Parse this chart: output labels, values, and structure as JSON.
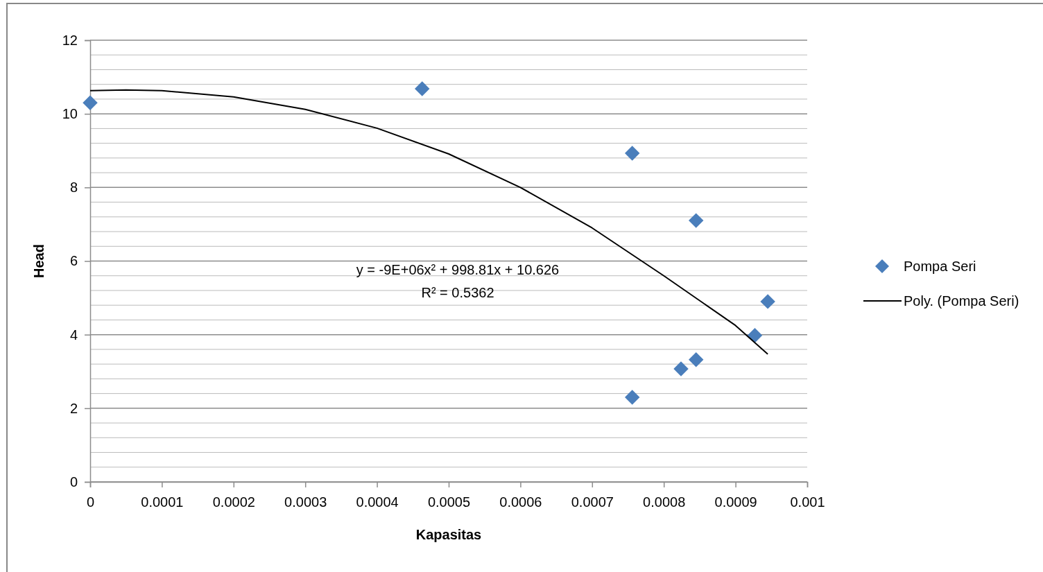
{
  "chart_data": {
    "type": "scatter",
    "xlabel": "Kapasitas",
    "ylabel": "Head",
    "xlim": [
      0,
      0.001
    ],
    "xticks": [
      0,
      0.0001,
      0.0002,
      0.0003,
      0.0004,
      0.0005,
      0.0006,
      0.0007,
      0.0008,
      0.0009,
      0.001
    ],
    "ylim": [
      0,
      12
    ],
    "yticks": [
      0,
      2,
      4,
      6,
      8,
      10,
      12
    ],
    "grid": "y",
    "legend": "right",
    "marker": "diamond",
    "series": [
      {
        "name": "Pompa Seri",
        "color": "#4a7ebb",
        "x": [
          0,
          0.000463,
          0.000756,
          0.000845,
          0.000756,
          0.000824,
          0.000845,
          0.000927,
          0.000945
        ],
        "values": [
          10.3,
          10.68,
          8.93,
          7.1,
          2.3,
          3.07,
          3.32,
          3.98,
          4.9
        ]
      },
      {
        "name": "Poly. (Pompa Seri)",
        "type": "line",
        "color": "#000000",
        "marker": "none",
        "line_style": "solid",
        "x": [
          0,
          5e-05,
          0.0001,
          0.0002,
          0.0003,
          0.0004,
          0.0005,
          0.0006,
          0.0007,
          0.0008,
          0.0009,
          0.000945
        ],
        "values": [
          10.63,
          10.65,
          10.63,
          10.46,
          10.12,
          9.61,
          8.91,
          8.0,
          6.9,
          5.6,
          4.25,
          3.47
        ]
      }
    ],
    "annotations": [
      {
        "text": "y = -9E+06x² + 998.81x + 10.626"
      },
      {
        "text": "R² = 0.5362"
      }
    ]
  }
}
